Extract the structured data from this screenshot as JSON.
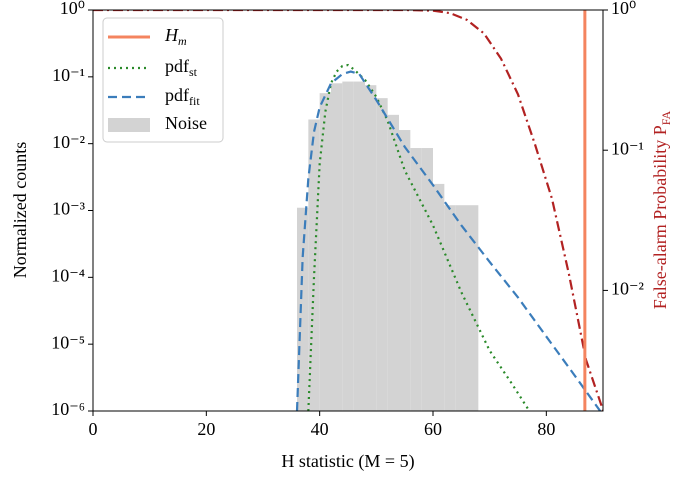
{
  "chart_data": {
    "type": "line",
    "xlabel": "H statistic (M = 5)",
    "ylabel": "Normalized counts",
    "y2label": "False-alarm Probability P_FA",
    "y2label_color": "#b22222",
    "xlim": [
      0,
      90
    ],
    "xticks": [
      0,
      20,
      40,
      60,
      80
    ],
    "ylim": [
      1e-06,
      1
    ],
    "ylog": true,
    "yticks": [
      {
        "value": 1e-06,
        "label": "10⁻⁶"
      },
      {
        "value": 1e-05,
        "label": "10⁻⁵"
      },
      {
        "value": 0.0001,
        "label": "10⁻⁴"
      },
      {
        "value": 0.001,
        "label": "10⁻³"
      },
      {
        "value": 0.01,
        "label": "10⁻²"
      },
      {
        "value": 0.1,
        "label": "10⁻¹"
      },
      {
        "value": 1,
        "label": "10⁰"
      }
    ],
    "y2lim": [
      0.00138,
      1
    ],
    "y2log": true,
    "y2ticks": [
      {
        "value": 0.01,
        "label": "10⁻²"
      },
      {
        "value": 0.1,
        "label": "10⁻¹"
      },
      {
        "value": 1,
        "label": "10⁰"
      }
    ],
    "legend": "upper left",
    "vline": {
      "name": "H_m",
      "color": "#f4845f",
      "x": 86.8
    },
    "histogram": {
      "name": "Noise",
      "color": "#d3d3d3",
      "bins": [
        36,
        38,
        40,
        42,
        44,
        46,
        48,
        50,
        52,
        54,
        56,
        58,
        60,
        62,
        64,
        66,
        68
      ],
      "counts": [
        0.0011,
        0.023,
        0.057,
        0.08,
        0.085,
        0.085,
        0.075,
        0.048,
        0.027,
        0.016,
        0.0086,
        0.0086,
        0.0025,
        0.0012,
        0.0012,
        0.0012
      ]
    },
    "series": [
      {
        "name": "pdf_st",
        "color": "#2a8a2a",
        "dash": "2,4",
        "x": [
          38,
          39,
          40,
          41,
          42,
          43,
          44,
          45,
          46,
          48,
          50,
          52,
          55,
          60,
          65,
          70,
          74,
          77
        ],
        "values": [
          1e-06,
          0.0001,
          0.005,
          0.03,
          0.08,
          0.12,
          0.145,
          0.15,
          0.13,
          0.09,
          0.05,
          0.022,
          0.004,
          0.0006,
          6e-05,
          8e-06,
          2.5e-06,
          1e-06
        ]
      },
      {
        "name": "pdf_fit",
        "color": "#3b7dbb",
        "dash": "9,5",
        "x": [
          36,
          37,
          38,
          39,
          40,
          42,
          44,
          45.5,
          47,
          50,
          55,
          60,
          65,
          70,
          75,
          80,
          85,
          89.5
        ],
        "values": [
          1e-06,
          0.0002,
          0.003,
          0.015,
          0.035,
          0.08,
          0.11,
          0.12,
          0.11,
          0.045,
          0.009,
          0.0024,
          0.0006,
          0.00017,
          5e-05,
          1.3e-05,
          3.4e-06,
          1e-06
        ]
      },
      {
        "axis": "y2",
        "color": "#b22222",
        "dash": "10,4,2,4",
        "x": [
          0,
          55,
          60,
          63,
          66,
          69,
          72,
          75,
          78,
          81,
          84,
          87,
          90
        ],
        "values": [
          1,
          1,
          0.99,
          0.95,
          0.85,
          0.68,
          0.45,
          0.25,
          0.11,
          0.045,
          0.013,
          0.0032,
          0.0014
        ]
      }
    ]
  }
}
